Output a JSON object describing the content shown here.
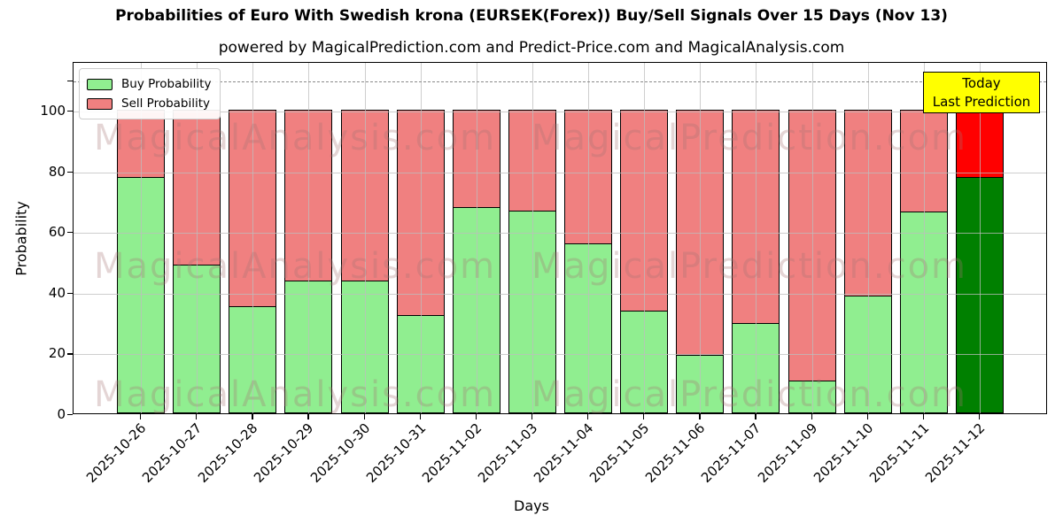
{
  "title": "Probabilities of Euro With Swedish krona (EURSEK(Forex)) Buy/Sell Signals Over 15 Days (Nov 13)",
  "subtitle": "powered by MagicalPrediction.com and Predict-Price.com and MagicalAnalysis.com",
  "legend": {
    "buy_label": "Buy Probability",
    "sell_label": "Sell Probability"
  },
  "today_box": {
    "line1": "Today",
    "line2": "Last Prediction",
    "bg_color": "#FFFF00"
  },
  "watermarks": {
    "left_text": "MagicalAnalysis.com",
    "right_text": "MagicalPrediction.com",
    "color": "rgba(165,115,115,0.30)"
  },
  "axes": {
    "ylabel": "Probability",
    "xlabel": "Days",
    "y_ticks": [
      0,
      20,
      40,
      60,
      80,
      100
    ],
    "dashed_line_value": 110
  },
  "colors": {
    "buy_fill": "#90EE90",
    "sell_fill": "#F08080",
    "today_buy_fill": "#008000",
    "today_sell_fill": "#FF0000",
    "bar_edge": "#000000",
    "grid": "rgba(190,190,190,0.75)",
    "dashed": "#8a8a8a"
  },
  "chart_data": {
    "type": "bar",
    "stacked": true,
    "title": "Probabilities of Euro With Swedish krona (EURSEK(Forex)) Buy/Sell Signals Over 15 Days (Nov 13)",
    "xlabel": "Days",
    "ylabel": "Probability",
    "ylim": [
      0,
      116
    ],
    "grid": true,
    "legend_position": "upper-left",
    "categories": [
      "2025-10-26",
      "2025-10-27",
      "2025-10-28",
      "2025-10-29",
      "2025-10-30",
      "2025-10-31",
      "2025-11-02",
      "2025-11-03",
      "2025-11-04",
      "2025-11-05",
      "2025-11-06",
      "2025-11-07",
      "2025-11-09",
      "2025-11-10",
      "2025-11-11",
      "2025-11-12"
    ],
    "series": [
      {
        "name": "Buy Probability",
        "values": [
          78,
          49,
          35.5,
          44,
          44,
          32.5,
          68,
          67,
          56,
          34,
          19.5,
          30,
          11,
          39,
          66.5,
          78
        ]
      },
      {
        "name": "Sell Probability",
        "values": [
          22,
          51,
          64.5,
          56,
          56,
          67.5,
          32,
          33,
          44,
          66,
          80.5,
          70,
          89,
          61,
          33.5,
          22
        ]
      }
    ],
    "today_bar_index": 15,
    "annotation": "Today / Last Prediction on last bar (2025-11-12)"
  }
}
